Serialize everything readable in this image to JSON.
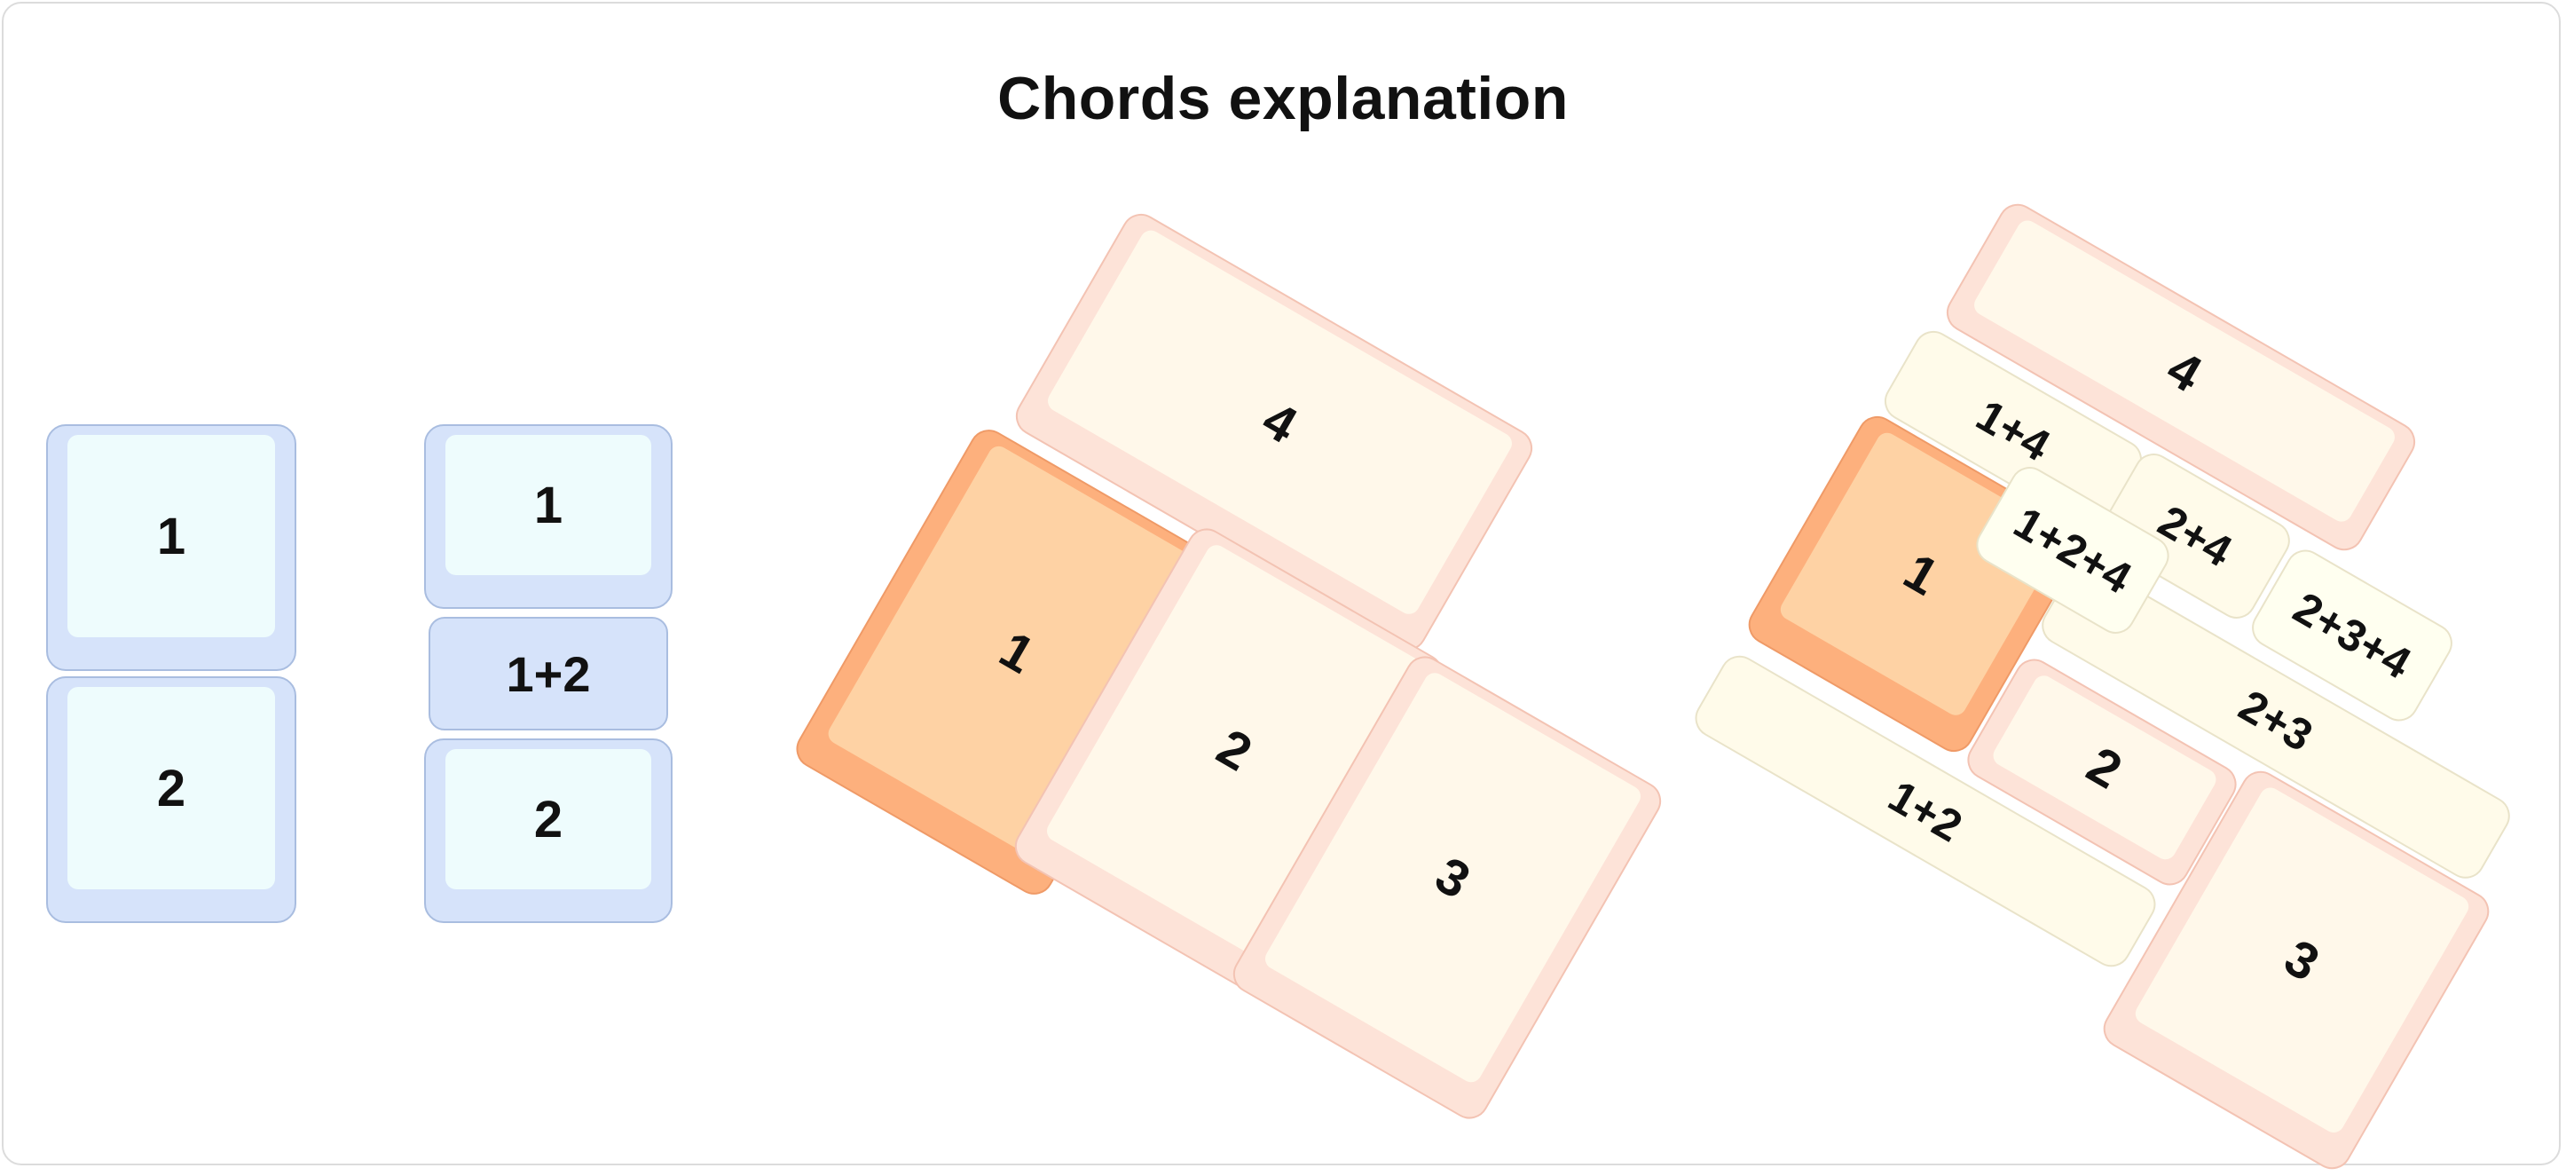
{
  "title": "Chords explanation",
  "colors": {
    "blue_key": "#d6e3fa",
    "blue_key_top": "#eefcfd",
    "peach_key": "#fde3d8",
    "peach_key_top": "#fff8ea",
    "orange_key": "#fdb07d",
    "orange_key_top": "#fed2a4",
    "chord_zone": "#fffbea"
  },
  "panel_a": {
    "keys": [
      "1",
      "2"
    ]
  },
  "panel_b": {
    "keys": [
      "1",
      "2"
    ],
    "chord": "1+2"
  },
  "panel_c": {
    "keys": [
      "4",
      "1",
      "2",
      "3"
    ]
  },
  "panel_d": {
    "keys": [
      "4",
      "1",
      "2",
      "3"
    ],
    "chords": [
      "1+4",
      "2+4",
      "1+2+4",
      "2+3+4",
      "2+3",
      "1+2"
    ]
  }
}
